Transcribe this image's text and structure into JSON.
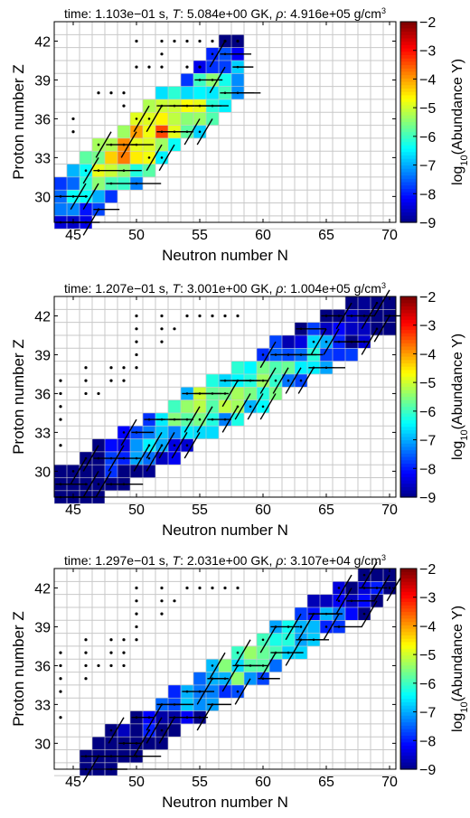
{
  "chart_data": [
    {
      "type": "heatmap",
      "title_parts": {
        "prefix": "time: 1.103e−01 s, ",
        "T_symbol": "T",
        "T_text": ": 5.084e+00 GK, ",
        "rho_symbol": "ρ",
        "rho_text": ": 4.916e+05 g/cm",
        "rho_exp": "3"
      },
      "xlabel": "Neutron number N",
      "ylabel": "Proton number Z",
      "xlim": [
        43.5,
        70.5
      ],
      "ylim": [
        28,
        43.5
      ],
      "xticks": [
        45,
        50,
        55,
        60,
        65,
        70
      ],
      "yticks": [
        30,
        33,
        36,
        39,
        42
      ],
      "grid": true,
      "colorbar": {
        "label": "log₁₀(Abundance Y)",
        "label_main": "log",
        "label_sub": "10",
        "label_rest": "(Abundance Y)",
        "min": -9,
        "max": -2,
        "ticks": [
          -2,
          -3,
          -4,
          -5,
          -6,
          -7,
          -8,
          -9
        ],
        "colormap": "jet"
      },
      "band": {
        "n_start": 44,
        "n_end": 58,
        "z_start": 29,
        "z_end": 40,
        "width": 5,
        "peak_n": 50,
        "peak_z": 35,
        "peak_log_y": -2.5
      },
      "stable_dots": [
        [
          45,
          36
        ],
        [
          45,
          35
        ],
        [
          47,
          38
        ],
        [
          48,
          38
        ],
        [
          49,
          38
        ],
        [
          49,
          37
        ],
        [
          50,
          42
        ],
        [
          52,
          42
        ],
        [
          53,
          42
        ],
        [
          54,
          42
        ],
        [
          55,
          42
        ],
        [
          56,
          42
        ],
        [
          57,
          42
        ],
        [
          58,
          42
        ],
        [
          52,
          41
        ],
        [
          52,
          40
        ],
        [
          51,
          40
        ],
        [
          50,
          40
        ],
        [
          54,
          40
        ],
        [
          55,
          40
        ]
      ],
      "flux_paths": 36
    },
    {
      "type": "heatmap",
      "title_parts": {
        "prefix": "time: 1.207e−01 s, ",
        "T_symbol": "T",
        "T_text": ": 3.001e+00 GK, ",
        "rho_symbol": "ρ",
        "rho_text": ": 1.004e+05 g/cm",
        "rho_exp": "3"
      },
      "xlabel": "Neutron number N",
      "ylabel": "Proton number Z",
      "xlim": [
        43.5,
        70.5
      ],
      "ylim": [
        28,
        43.5
      ],
      "xticks": [
        45,
        50,
        55,
        60,
        65,
        70
      ],
      "yticks": [
        30,
        33,
        36,
        39,
        42
      ],
      "grid": true,
      "colorbar": {
        "label": "log₁₀(Abundance Y)",
        "label_main": "log",
        "label_sub": "10",
        "label_rest": "(Abundance Y)",
        "min": -9,
        "max": -2,
        "ticks": [
          -2,
          -3,
          -4,
          -5,
          -6,
          -7,
          -8,
          -9
        ],
        "colormap": "jet"
      },
      "band": {
        "n_start": 44,
        "n_end": 70,
        "z_start": 28,
        "z_end": 43,
        "width": 4,
        "peak_n": 57,
        "peak_z": 36,
        "peak_log_y": -3.5
      },
      "stable_dots": [
        [
          44,
          37
        ],
        [
          44,
          36
        ],
        [
          44,
          35
        ],
        [
          44,
          34
        ],
        [
          44,
          32
        ],
        [
          46,
          38
        ],
        [
          46,
          37
        ],
        [
          46,
          36
        ],
        [
          47,
          36
        ],
        [
          48,
          38
        ],
        [
          48,
          37
        ],
        [
          49,
          38
        ],
        [
          49,
          37
        ],
        [
          50,
          42
        ],
        [
          50,
          41
        ],
        [
          50,
          40
        ],
        [
          50,
          39
        ],
        [
          50,
          38
        ],
        [
          52,
          42
        ],
        [
          52,
          41
        ],
        [
          52,
          40
        ],
        [
          53,
          41
        ],
        [
          54,
          42
        ],
        [
          55,
          42
        ],
        [
          56,
          42
        ],
        [
          57,
          42
        ],
        [
          58,
          42
        ]
      ],
      "flux_paths": 60
    },
    {
      "type": "heatmap",
      "title_parts": {
        "prefix": "time: 1.297e−01 s, ",
        "T_symbol": "T",
        "T_text": ": 2.031e+00 GK, ",
        "rho_symbol": "ρ",
        "rho_text": ": 3.107e+04 g/cm",
        "rho_exp": "3"
      },
      "xlabel": "Neutron number N",
      "ylabel": "Proton number Z",
      "xlim": [
        43.5,
        70.5
      ],
      "ylim": [
        28,
        43.5
      ],
      "xticks": [
        45,
        50,
        55,
        60,
        65,
        70
      ],
      "yticks": [
        30,
        33,
        36,
        39,
        42
      ],
      "grid": true,
      "colorbar": {
        "label": "log₁₀(Abundance Y)",
        "label_main": "log",
        "label_sub": "10",
        "label_rest": "(Abundance Y)",
        "min": -9,
        "max": -2,
        "ticks": [
          -2,
          -3,
          -4,
          -5,
          -6,
          -7,
          -8,
          -9
        ],
        "colormap": "jet"
      },
      "band": {
        "n_start": 46,
        "n_end": 70,
        "z_start": 28,
        "z_end": 43,
        "width": 3,
        "peak_n": 58,
        "peak_z": 37,
        "peak_log_y": -4.0
      },
      "stable_dots": [
        [
          44,
          37
        ],
        [
          44,
          36
        ],
        [
          44,
          35
        ],
        [
          44,
          34
        ],
        [
          44,
          32
        ],
        [
          46,
          38
        ],
        [
          46,
          37
        ],
        [
          46,
          36
        ],
        [
          46,
          35
        ],
        [
          47,
          36
        ],
        [
          48,
          38
        ],
        [
          48,
          37
        ],
        [
          48,
          36
        ],
        [
          49,
          38
        ],
        [
          49,
          37
        ],
        [
          49,
          36
        ],
        [
          50,
          42
        ],
        [
          50,
          41
        ],
        [
          50,
          40
        ],
        [
          50,
          39
        ],
        [
          50,
          38
        ],
        [
          52,
          42
        ],
        [
          52,
          41
        ],
        [
          52,
          40
        ],
        [
          53,
          41
        ],
        [
          54,
          42
        ],
        [
          55,
          42
        ],
        [
          56,
          42
        ],
        [
          57,
          42
        ],
        [
          58,
          42
        ]
      ],
      "flux_paths": 50
    }
  ]
}
